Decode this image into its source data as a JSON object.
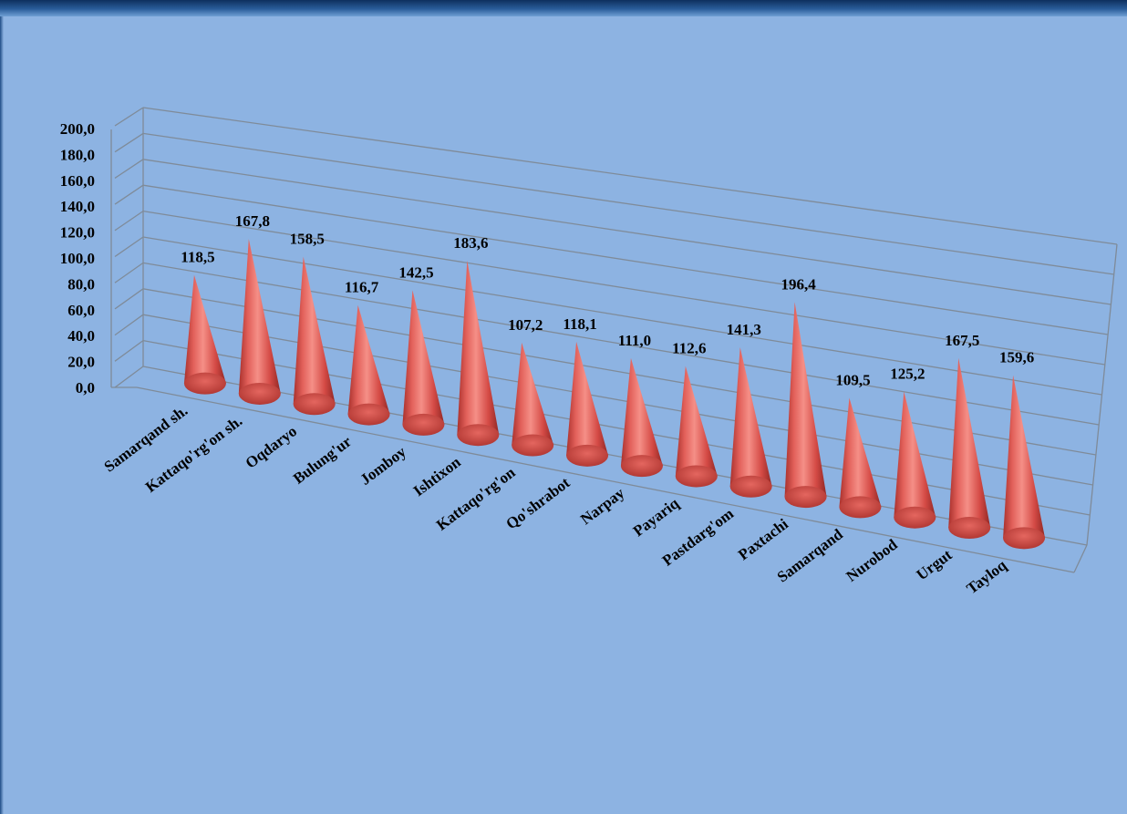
{
  "chart_data": {
    "type": "bar",
    "style": "3d-cone",
    "title": "",
    "xlabel": "",
    "ylabel": "",
    "ylim": [
      0,
      200
    ],
    "y_ticks": [
      "0,0",
      "20,0",
      "40,0",
      "60,0",
      "80,0",
      "100,0",
      "120,0",
      "140,0",
      "160,0",
      "180,0",
      "200,0"
    ],
    "grid": true,
    "legend": "none",
    "bar_color": "#d9534f",
    "categories": [
      "Samarqand sh.",
      "Kattaqo'rg'on sh.",
      "Oqdaryo",
      "Bulung'ur",
      "Jomboy",
      "Ishtixon",
      "Kattaqo'rg'on",
      "Qo'shrabot",
      "Narpay",
      "Payariq",
      "Pastdarg'om",
      "Paxtachi",
      "Samarqand",
      "Nurobod",
      "Urgut",
      "Tayloq"
    ],
    "values": [
      118.5,
      167.8,
      158.5,
      116.7,
      142.5,
      183.6,
      107.2,
      118.1,
      111.0,
      112.6,
      141.3,
      196.4,
      109.5,
      125.2,
      167.5,
      159.6
    ],
    "value_labels": [
      "118,5",
      "167,8",
      "158,5",
      "116,7",
      "142,5",
      "183,6",
      "107,2",
      "118,1",
      "111,0",
      "112,6",
      "141,3",
      "196,4",
      "109,5",
      "125,2",
      "167,5",
      "159,6"
    ]
  }
}
